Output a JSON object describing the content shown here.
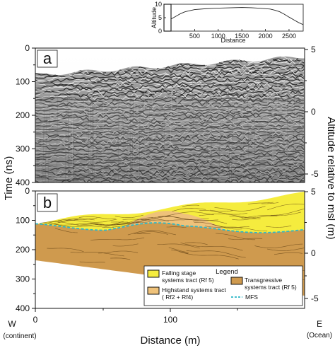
{
  "figure": {
    "inset": {
      "ylabel": "Altitude",
      "xlabel": "Distance",
      "yticks": [
        "0",
        "5",
        "10"
      ],
      "xticks": [
        "500",
        "1000",
        "1500",
        "2000",
        "2500"
      ],
      "profile": {
        "x": [
          0,
          100,
          200,
          300,
          500,
          700,
          900,
          1100,
          1300,
          1500,
          1700,
          1900,
          2100,
          2200,
          2300,
          2400,
          2500,
          2600,
          2700,
          2800
        ],
        "y": [
          4.5,
          5.5,
          6.5,
          7.2,
          8.0,
          8.3,
          8.5,
          8.6,
          8.7,
          8.8,
          8.7,
          8.5,
          8.2,
          7.8,
          7.2,
          6.3,
          5.2,
          4.2,
          3.2,
          2.4
        ]
      }
    },
    "panel_a": {
      "letter": "a"
    },
    "panel_b": {
      "letter": "b",
      "legend": {
        "title": "Legend",
        "items": [
          {
            "label_line1": "Falling stage",
            "label_line2": "systems tract (Rf 5)",
            "color": "#f5ec3e"
          },
          {
            "label_line1": "Transgressive",
            "label_line2": "systems tract (Rf 5)",
            "color": "#cf9a4e"
          },
          {
            "label_line1": "Highstand systems tract",
            "label_line2": "( Rf2 + Rf4)",
            "color": "#efc27a"
          },
          {
            "label_line1": "MFS",
            "label_line2": "",
            "color": "#2db8c8"
          }
        ]
      }
    },
    "left_axis": {
      "title": "Time (ns)",
      "ticks_a": [
        "0",
        "100",
        "200",
        "300",
        "400"
      ],
      "ticks_b": [
        "0",
        "100",
        "200",
        "300",
        "400"
      ]
    },
    "right_axis": {
      "title": "Altitude relative to msl (m)",
      "ticks_a": [
        "5",
        "0",
        "-5"
      ],
      "ticks_b": [
        "5",
        "0",
        "-5"
      ]
    },
    "bottom_axis": {
      "title": "Distance (m)",
      "ticks": [
        "0",
        "100"
      ],
      "west_label": "W",
      "west_sub": "(continent)",
      "east_label": "E",
      "east_sub": "(Ocean)"
    },
    "colors": {
      "falling_stage": "#f5ec3e",
      "highstand": "#efc27a",
      "transgressive": "#cf9a4e",
      "mfs": "#2db8c8"
    }
  }
}
